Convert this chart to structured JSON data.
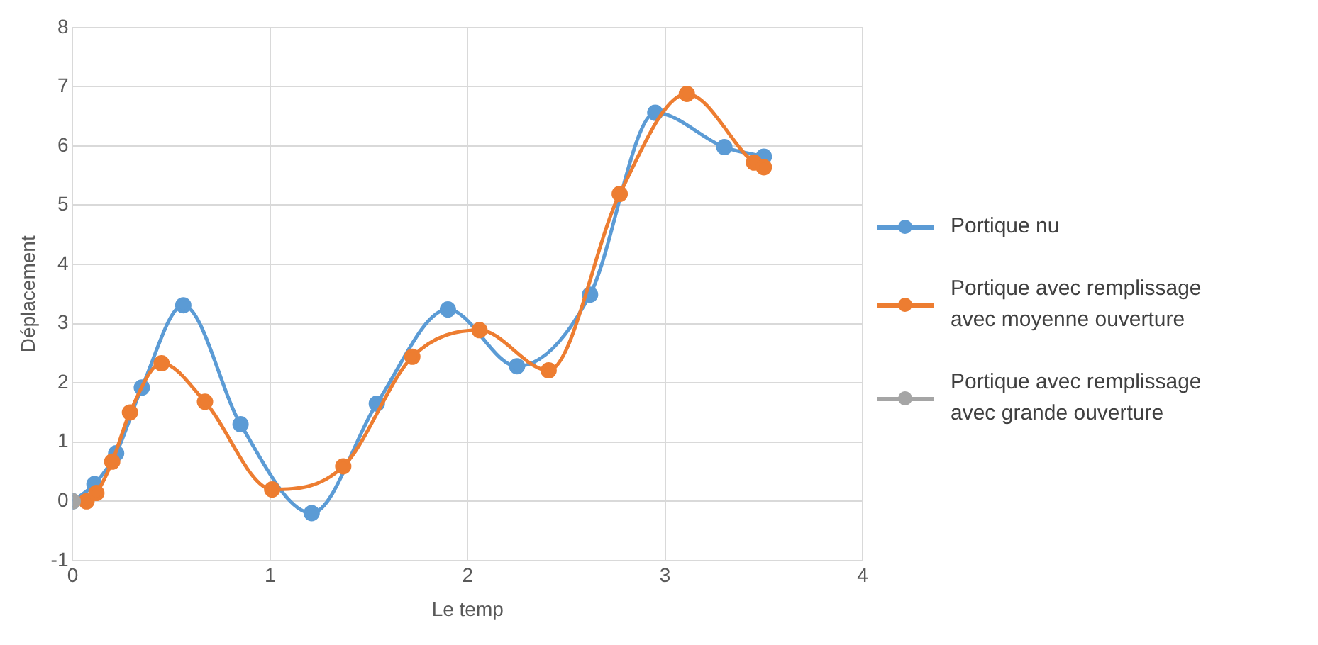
{
  "chart_data": {
    "type": "line",
    "xlabel": "Le temp",
    "ylabel": "Déplacement",
    "xlim": [
      0,
      4
    ],
    "xticks": [
      0,
      1,
      2,
      3,
      4
    ],
    "ylim": [
      -1,
      8
    ],
    "yticks": [
      -1,
      0,
      1,
      2,
      3,
      4,
      5,
      6,
      7,
      8
    ],
    "grid": true,
    "legend": "right",
    "marker": "circle",
    "line_style": "solid",
    "series": [
      {
        "name": "Portique nu",
        "color": "#5b9bd5",
        "x": [
          0,
          0.11,
          0.22,
          0.35,
          0.56,
          0.85,
          1.01,
          1.21,
          1.54,
          1.9,
          2.25,
          2.62,
          2.95,
          3.3,
          3.5
        ],
        "values": [
          0,
          0.29,
          0.81,
          1.92,
          3.31,
          1.3,
          null,
          -0.2,
          1.65,
          3.24,
          2.28,
          3.49,
          6.56,
          5.98,
          5.82
        ]
      },
      {
        "name": "Portique avec remplissage avec moyenne ouverture",
        "color": "#ed7d31",
        "x": [
          0.07,
          0.12,
          0.2,
          0.29,
          0.45,
          0.67,
          1.01,
          1.37,
          1.72,
          2.06,
          2.41,
          2.77,
          3.11,
          3.45,
          3.5
        ],
        "values": [
          0,
          0.14,
          0.67,
          1.5,
          2.33,
          1.68,
          0.2,
          0.59,
          2.44,
          2.89,
          2.21,
          5.19,
          6.88,
          5.72,
          5.64
        ]
      },
      {
        "name": "Portique avec remplissage avec grande ouverture",
        "color": "#a5a5a5",
        "x": [
          0
        ],
        "values": [
          0
        ]
      }
    ]
  }
}
